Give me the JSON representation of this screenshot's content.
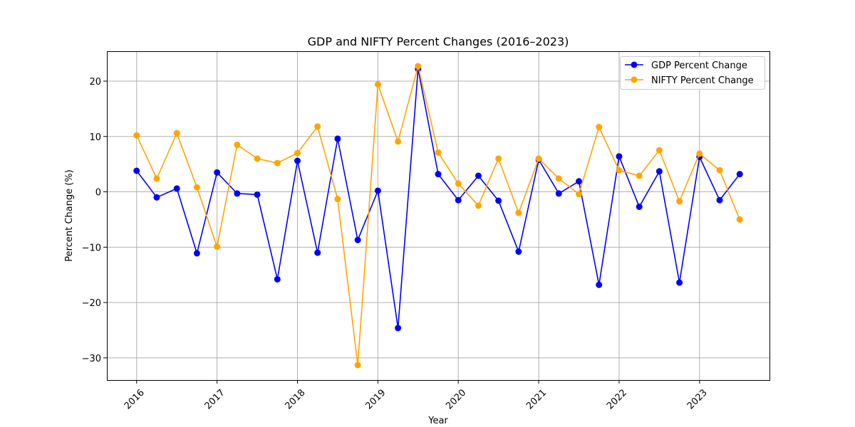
{
  "chart_data": {
    "type": "line",
    "title": "GDP and NIFTY Percent Changes (2016–2023)",
    "xlabel": "Year",
    "ylabel": "Percent Change (%)",
    "xlim": [
      2015.63,
      2023.87
    ],
    "ylim": [
      -34,
      25.4
    ],
    "x_ticks": [
      {
        "value": 2016,
        "label": "2016"
      },
      {
        "value": 2017,
        "label": "2017"
      },
      {
        "value": 2018,
        "label": "2018"
      },
      {
        "value": 2019,
        "label": "2019"
      },
      {
        "value": 2020,
        "label": "2020"
      },
      {
        "value": 2021,
        "label": "2021"
      },
      {
        "value": 2022,
        "label": "2022"
      },
      {
        "value": 2023,
        "label": "2023"
      }
    ],
    "y_ticks": [
      {
        "value": 20,
        "label": "20"
      },
      {
        "value": 10,
        "label": "10"
      },
      {
        "value": 0,
        "label": "0"
      },
      {
        "value": -10,
        "label": "−10"
      },
      {
        "value": -20,
        "label": "−20"
      },
      {
        "value": -30,
        "label": "−30"
      }
    ],
    "grid": true,
    "legend_position": "top-right",
    "x": [
      2016.0,
      2016.25,
      2016.5,
      2016.75,
      2017.0,
      2017.25,
      2017.5,
      2017.75,
      2018.0,
      2018.25,
      2018.5,
      2018.75,
      2019.0,
      2019.25,
      2019.5,
      2019.75,
      2020.0,
      2020.25,
      2020.5,
      2020.75,
      2021.0,
      2021.25,
      2021.5,
      2021.75,
      2022.0,
      2022.25,
      2022.5,
      2022.75,
      2023.0,
      2023.25,
      2023.5
    ],
    "series": [
      {
        "name": "GDP Percent Change",
        "color": "#0000ff",
        "values": [
          3.8,
          -1.0,
          0.6,
          -11.1,
          3.5,
          -0.3,
          -0.5,
          -15.8,
          5.6,
          -11.0,
          9.6,
          -8.7,
          0.2,
          -24.6,
          22.2,
          3.2,
          -1.5,
          2.9,
          -1.6,
          -10.8,
          5.8,
          -0.3,
          1.9,
          -16.8,
          6.4,
          -2.7,
          3.7,
          -16.4,
          6.3,
          -1.5,
          3.2
        ]
      },
      {
        "name": "NIFTY Percent Change",
        "color": "#ffa500",
        "values": [
          10.2,
          2.4,
          10.6,
          0.8,
          -9.9,
          8.5,
          6.0,
          5.2,
          7.0,
          11.8,
          -1.3,
          -31.3,
          19.4,
          9.1,
          22.7,
          7.1,
          1.5,
          -2.5,
          6.0,
          -3.8,
          6.0,
          2.4,
          -0.4,
          11.7,
          3.9,
          2.9,
          7.5,
          -1.7,
          6.9,
          3.9,
          -5.0
        ]
      }
    ]
  }
}
